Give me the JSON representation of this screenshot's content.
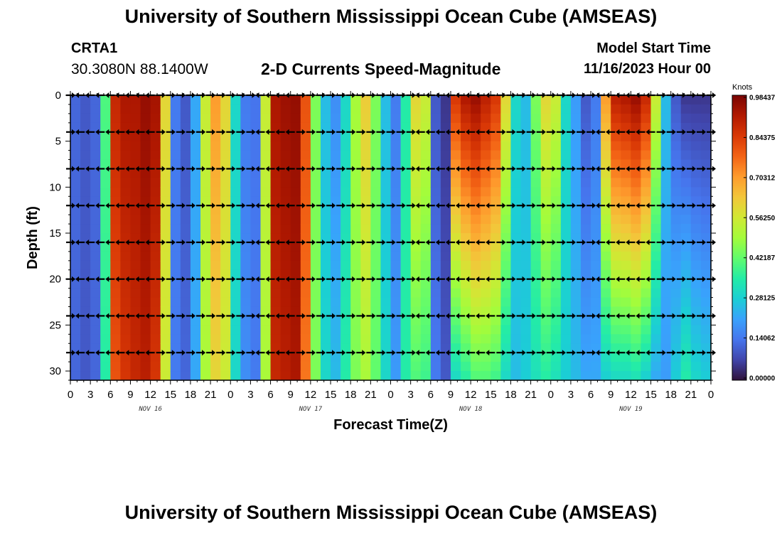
{
  "header": {
    "title": "University of Southern Mississippi Ocean Cube (AMSEAS)",
    "station": "CRTA1",
    "coords": "30.3080N  88.1400W",
    "subtitle": "2-D Currents Speed-Magnitude",
    "start_label": "Model Start Time",
    "start_value": "11/16/2023 Hour 00"
  },
  "footer": {
    "title": "University of Southern Mississippi Ocean Cube (AMSEAS)"
  },
  "chart_data": {
    "type": "heatmap",
    "xlabel": "Forecast Time(Z)",
    "ylabel": "Depth (ft)",
    "xlim": [
      0,
      96
    ],
    "ylim": [
      0,
      31
    ],
    "x_ticks": [
      0,
      3,
      6,
      9,
      12,
      15,
      18,
      21,
      24,
      27,
      30,
      33,
      36,
      39,
      42,
      45,
      48,
      51,
      54,
      57,
      60,
      63,
      66,
      69,
      72,
      75,
      78,
      81,
      84,
      87,
      90,
      93,
      96
    ],
    "x_tick_labels": [
      "0",
      "3",
      "6",
      "9",
      "12",
      "15",
      "18",
      "21",
      "0",
      "3",
      "6",
      "9",
      "12",
      "15",
      "18",
      "21",
      "0",
      "3",
      "6",
      "9",
      "12",
      "15",
      "18",
      "21",
      "0",
      "3",
      "6",
      "9",
      "12",
      "15",
      "18",
      "21",
      "0"
    ],
    "y_ticks": [
      0,
      5,
      10,
      15,
      20,
      25,
      30
    ],
    "y_tick_labels": [
      "0",
      "5",
      "10",
      "15",
      "20",
      "25",
      "30"
    ],
    "day_labels": [
      {
        "hour": 12,
        "label": "NOV 16"
      },
      {
        "hour": 36,
        "label": "NOV 17"
      },
      {
        "hour": 60,
        "label": "NOV 18"
      },
      {
        "hour": 84,
        "label": "NOV 19"
      }
    ],
    "colorbar": {
      "unit": "Knots",
      "min": 0.0,
      "max": 0.984375,
      "labels": [
        "0.98437",
        "0.84375",
        "0.70312",
        "0.56250",
        "0.42187",
        "0.28125",
        "0.14062",
        "0.00000"
      ],
      "colors": [
        "#30123b",
        "#4145ab",
        "#4675ed",
        "#39a2fc",
        "#1bcfd4",
        "#24eca6",
        "#61fc6c",
        "#a4fc3b",
        "#d1e834",
        "#f3c63a",
        "#fe9b2d",
        "#f36315",
        "#d93806",
        "#b11901",
        "#7a0403"
      ]
    },
    "speed_profile": {
      "hours": [
        0,
        1.5,
        3,
        4.5,
        6,
        7.5,
        9,
        10.5,
        12,
        13.5,
        15,
        16.5,
        18,
        19.5,
        21,
        22.5,
        24,
        25.5,
        27,
        28.5,
        30,
        31.5,
        33,
        34.5,
        36,
        37.5,
        39,
        40.5,
        42,
        43.5,
        45,
        46.5,
        48,
        49.5,
        51,
        52.5,
        54,
        55.5,
        57,
        58.5,
        60,
        61.5,
        63,
        64.5,
        66,
        67.5,
        69,
        70.5,
        72,
        73.5,
        75,
        76.5,
        78,
        79.5,
        81,
        82.5,
        84,
        85.5,
        87,
        88.5,
        90,
        91.5,
        93,
        94.5,
        96
      ],
      "surface": [
        0.12,
        0.1,
        0.12,
        0.4,
        0.88,
        0.92,
        0.92,
        0.95,
        0.93,
        0.6,
        0.15,
        0.1,
        0.22,
        0.55,
        0.7,
        0.6,
        0.3,
        0.15,
        0.14,
        0.55,
        0.92,
        0.94,
        0.95,
        0.8,
        0.45,
        0.25,
        0.18,
        0.3,
        0.5,
        0.62,
        0.45,
        0.25,
        0.15,
        0.35,
        0.6,
        0.55,
        0.1,
        0.05,
        0.85,
        0.92,
        0.95,
        0.9,
        0.85,
        0.6,
        0.3,
        0.25,
        0.45,
        0.6,
        0.55,
        0.3,
        0.2,
        0.1,
        0.15,
        0.7,
        0.9,
        0.92,
        0.95,
        0.88,
        0.55,
        0.25,
        0.1,
        0.05,
        0.05,
        0.05,
        0.05
      ],
      "bottom": [
        0.12,
        0.1,
        0.12,
        0.35,
        0.8,
        0.85,
        0.88,
        0.9,
        0.85,
        0.55,
        0.15,
        0.12,
        0.22,
        0.5,
        0.6,
        0.55,
        0.3,
        0.18,
        0.15,
        0.5,
        0.88,
        0.9,
        0.92,
        0.75,
        0.45,
        0.3,
        0.25,
        0.35,
        0.45,
        0.5,
        0.42,
        0.3,
        0.2,
        0.35,
        0.4,
        0.38,
        0.15,
        0.1,
        0.3,
        0.35,
        0.4,
        0.4,
        0.38,
        0.3,
        0.25,
        0.28,
        0.32,
        0.35,
        0.32,
        0.28,
        0.25,
        0.22,
        0.22,
        0.28,
        0.3,
        0.3,
        0.32,
        0.28,
        0.22,
        0.2,
        0.28,
        0.35,
        0.3,
        0.28,
        0.28
      ]
    },
    "vector_depths": [
      0,
      4,
      8,
      12,
      16,
      20,
      24,
      28
    ],
    "vector_hours": [
      0,
      1.5,
      3,
      4.5,
      6,
      7.5,
      9,
      10.5,
      12,
      13.5,
      15,
      16.5,
      18,
      19.5,
      21,
      22.5,
      24,
      25.5,
      27,
      28.5,
      30,
      31.5,
      33,
      34.5,
      36,
      37.5,
      39,
      40.5,
      42,
      43.5,
      45,
      46.5,
      48,
      49.5,
      51,
      52.5,
      54,
      55.5,
      57,
      58.5,
      60,
      61.5,
      63,
      64.5,
      66,
      67.5,
      69,
      70.5,
      72,
      73.5,
      75,
      76.5,
      78,
      79.5,
      81,
      82.5,
      84,
      85.5,
      87,
      88.5,
      90,
      91.5,
      93,
      94.5,
      96
    ],
    "vector_directions": [
      "E",
      "W",
      "W",
      "W",
      "W",
      "W",
      "W",
      "W",
      "W",
      "E",
      "E",
      "E",
      "E",
      "E",
      "E",
      "E",
      "E",
      "E",
      "E",
      "W",
      "W",
      "W",
      "W",
      "E",
      "E",
      "E",
      "E",
      "E",
      "E",
      "E",
      "E",
      "E",
      "E",
      "E",
      "E",
      "W",
      "W",
      "W",
      "W",
      "W",
      "W",
      "W",
      "W",
      "E",
      "E",
      "E",
      "E",
      "E",
      "E",
      "E",
      "E",
      "E",
      "E",
      "W",
      "W",
      "W",
      "W",
      "W",
      "W",
      "E",
      "E",
      "E",
      "E",
      "E",
      "E"
    ]
  }
}
